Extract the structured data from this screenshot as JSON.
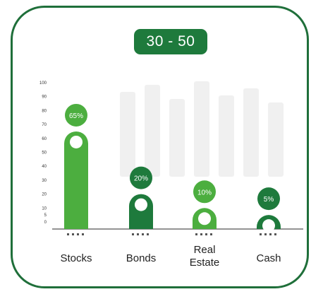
{
  "header": {
    "badge_label": "30 - 50"
  },
  "colors": {
    "card_border": "#1f6f3a",
    "badge_bg": "#1e7a3c",
    "bar_light": "#4cae3f",
    "bar_dark": "#1e7a3c",
    "watermark": "#f0f0f0"
  },
  "chart_data": {
    "type": "bar",
    "title": "",
    "xlabel": "",
    "ylabel": "",
    "ylim": [
      0,
      100
    ],
    "yticks": [
      0,
      5,
      10,
      20,
      30,
      40,
      50,
      60,
      70,
      80,
      90,
      100
    ],
    "grid": false,
    "categories": [
      {
        "lines": [
          "Stocks"
        ],
        "value": 65,
        "label": "65%",
        "color": "bar_light"
      },
      {
        "lines": [
          "Bonds"
        ],
        "value": 20,
        "label": "20%",
        "color": "bar_dark"
      },
      {
        "lines": [
          "Real",
          "Estate"
        ],
        "value": 10,
        "label": "10%",
        "color": "bar_light"
      },
      {
        "lines": [
          "Cash"
        ],
        "value": 5,
        "label": "5%",
        "color": "bar_dark"
      }
    ]
  }
}
